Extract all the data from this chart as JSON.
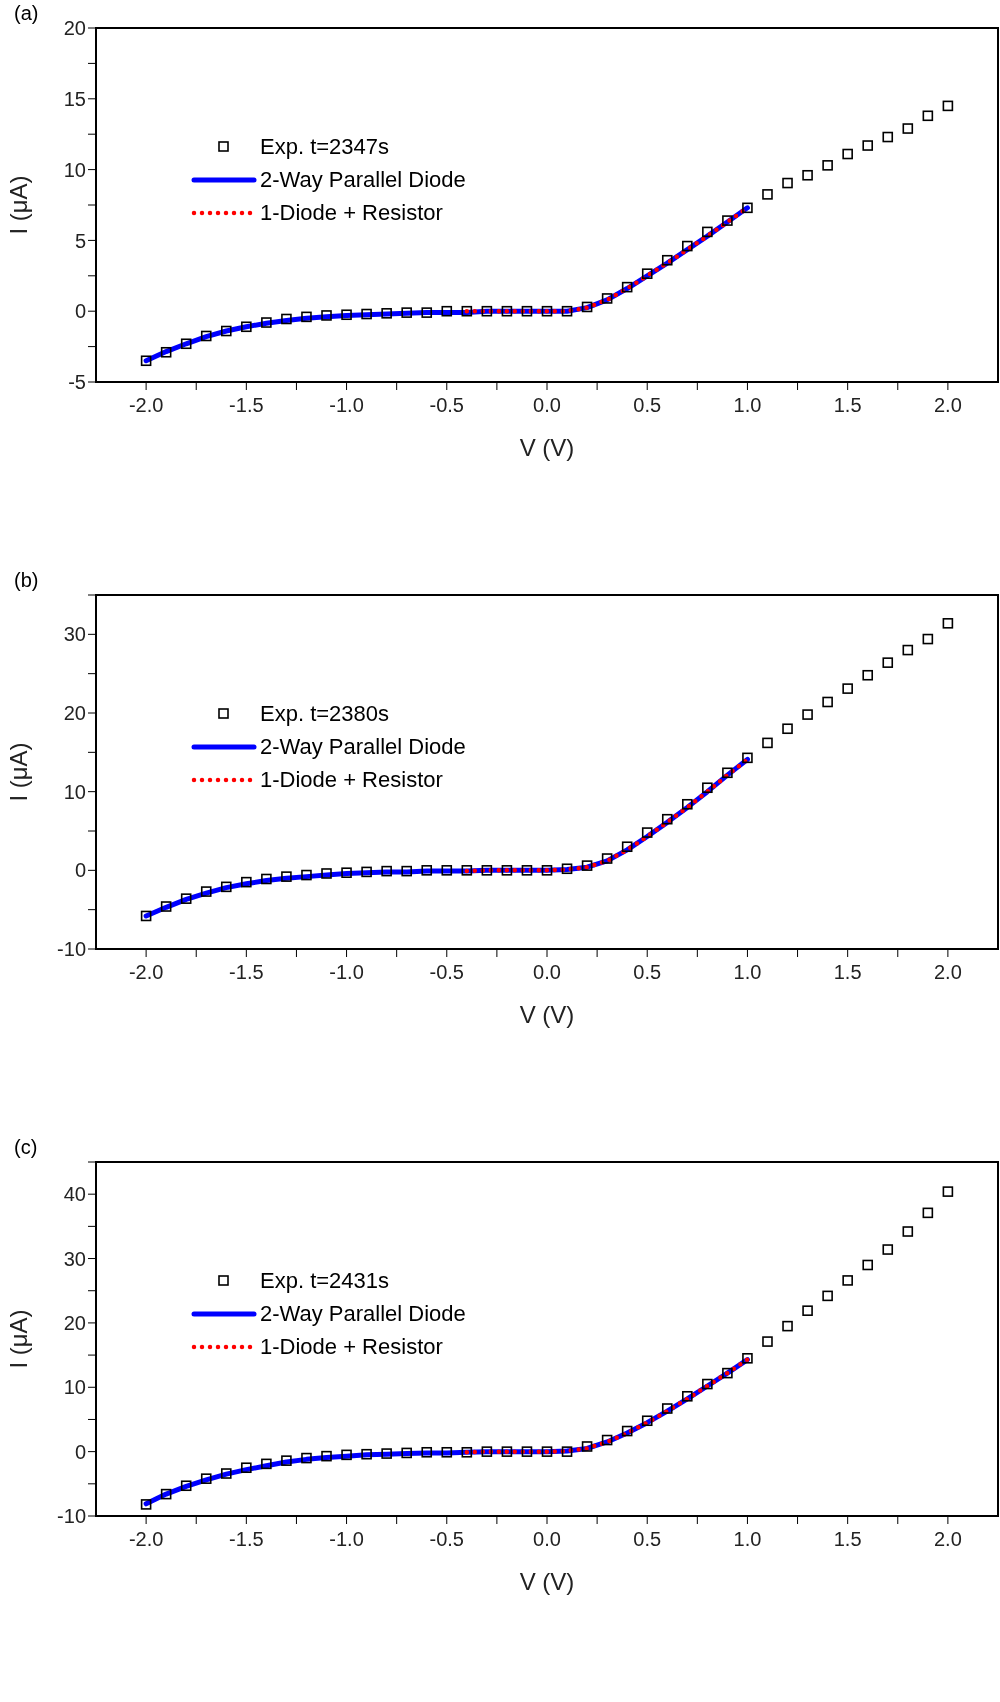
{
  "chart_data": [
    {
      "type": "scatter",
      "title": "(a)",
      "xlabel": "V (V)",
      "ylabel": "I (μA)",
      "xlim": [
        -2.25,
        2.25
      ],
      "xticks": [
        {
          "value": -2,
          "label": "-2.0"
        },
        {
          "value": -1.75,
          "label": null
        },
        {
          "value": -1.5,
          "label": "-1.5"
        },
        {
          "value": -1.25,
          "label": null
        },
        {
          "value": -1,
          "label": "-1.0"
        },
        {
          "value": -0.75,
          "label": null
        },
        {
          "value": -0.5,
          "label": "-0.5"
        },
        {
          "value": -0.25,
          "label": null
        },
        {
          "value": 0,
          "label": "0.0"
        },
        {
          "value": 0.25,
          "label": null
        },
        {
          "value": 0.5,
          "label": "0.5"
        },
        {
          "value": 0.75,
          "label": null
        },
        {
          "value": 1,
          "label": "1.0"
        },
        {
          "value": 1.25,
          "label": null
        },
        {
          "value": 1.5,
          "label": "1.5"
        },
        {
          "value": 1.75,
          "label": null
        },
        {
          "value": 2,
          "label": "2.0"
        }
      ],
      "ylim": [
        -5,
        20
      ],
      "yticks": [
        -5,
        {
          "value": -2.5,
          "label": null
        },
        0,
        {
          "value": 2.5,
          "label": null
        },
        5,
        {
          "value": 7.5,
          "label": null
        },
        10,
        {
          "value": 12.5,
          "label": null
        },
        15,
        {
          "value": 17.5,
          "label": null
        },
        20
      ],
      "legend": "top left",
      "grid": false,
      "series": [
        {
          "name": "Exp. t=2347s",
          "marker": "square",
          "color": "#000000",
          "x": [
            -2.0,
            -1.9,
            -1.8,
            -1.7,
            -1.6,
            -1.5,
            -1.4,
            -1.3,
            -1.2,
            -1.1,
            -1.0,
            -0.9,
            -0.8,
            -0.7,
            -0.6,
            -0.5,
            -0.4,
            -0.3,
            -0.2,
            -0.1,
            0.0,
            0.1,
            0.2,
            0.3,
            0.4,
            0.5,
            0.6,
            0.7,
            0.8,
            0.9,
            1.0,
            1.1,
            1.2,
            1.3,
            1.4,
            1.5,
            1.6,
            1.7,
            1.8,
            1.9,
            2.0
          ],
          "values": [
            -3.5,
            -2.9,
            -2.3,
            -1.75,
            -1.4,
            -1.1,
            -0.8,
            -0.55,
            -0.4,
            -0.3,
            -0.25,
            -0.2,
            -0.15,
            -0.1,
            -0.1,
            0,
            0,
            0,
            0,
            0,
            0,
            0,
            0.3,
            0.9,
            1.7,
            2.65,
            3.6,
            4.6,
            5.6,
            6.4,
            7.3,
            8.25,
            9.05,
            9.6,
            10.3,
            11.1,
            11.7,
            12.3,
            12.9,
            13.8,
            14.5
          ]
        },
        {
          "name": "2-Way Parallel Diode",
          "type": "line",
          "line_style": "solid",
          "marker": "none",
          "color": "#0000ff",
          "x": [
            -2.0,
            -1.9,
            -1.8,
            -1.7,
            -1.6,
            -1.5,
            -1.4,
            -1.3,
            -1.2,
            -1.1,
            -1.0,
            -0.9,
            -0.8,
            -0.7,
            -0.6,
            -0.5,
            -0.4,
            -0.3,
            -0.2,
            -0.1,
            0.0,
            0.1,
            0.2,
            0.3,
            0.4,
            0.5,
            0.6,
            0.7,
            0.8,
            0.9,
            1.0
          ],
          "values": [
            -3.5,
            -2.85,
            -2.3,
            -1.8,
            -1.4,
            -1.1,
            -0.85,
            -0.65,
            -0.5,
            -0.4,
            -0.3,
            -0.25,
            -0.2,
            -0.15,
            -0.1,
            -0.1,
            -0.1,
            0,
            0,
            0,
            0,
            0,
            0.25,
            0.8,
            1.6,
            2.5,
            3.4,
            4.35,
            5.3,
            6.3,
            7.3
          ]
        },
        {
          "name": "1-Diode + Resistor",
          "type": "line",
          "line_style": "dotted",
          "marker": "none",
          "color": "#ff0000",
          "x": [
            -0.4,
            -0.3,
            -0.2,
            -0.1,
            0.0,
            0.1,
            0.2,
            0.3,
            0.4,
            0.5,
            0.6,
            0.7,
            0.8,
            0.9,
            1.0
          ],
          "values": [
            0,
            0,
            0,
            0,
            0,
            0,
            0.25,
            0.8,
            1.6,
            2.5,
            3.4,
            4.35,
            5.3,
            6.3,
            7.3
          ]
        }
      ]
    },
    {
      "type": "scatter",
      "title": "(b)",
      "xlabel": "V (V)",
      "ylabel": "I (μA)",
      "xlim": [
        -2.25,
        2.25
      ],
      "xticks": [
        {
          "value": -2,
          "label": "-2.0"
        },
        {
          "value": -1.75,
          "label": null
        },
        {
          "value": -1.5,
          "label": "-1.5"
        },
        {
          "value": -1.25,
          "label": null
        },
        {
          "value": -1,
          "label": "-1.0"
        },
        {
          "value": -0.75,
          "label": null
        },
        {
          "value": -0.5,
          "label": "-0.5"
        },
        {
          "value": -0.25,
          "label": null
        },
        {
          "value": 0,
          "label": "0.0"
        },
        {
          "value": 0.25,
          "label": null
        },
        {
          "value": 0.5,
          "label": "0.5"
        },
        {
          "value": 0.75,
          "label": null
        },
        {
          "value": 1,
          "label": "1.0"
        },
        {
          "value": 1.25,
          "label": null
        },
        {
          "value": 1.5,
          "label": "1.5"
        },
        {
          "value": 1.75,
          "label": null
        },
        {
          "value": 2,
          "label": "2.0"
        }
      ],
      "ylim": [
        -10,
        35
      ],
      "yticks": [
        -10,
        {
          "value": -5,
          "label": null
        },
        0,
        {
          "value": 5,
          "label": null
        },
        10,
        {
          "value": 15,
          "label": null
        },
        20,
        {
          "value": 25,
          "label": null
        },
        30,
        {
          "value": 35,
          "label": null
        }
      ],
      "legend": "top left",
      "grid": false,
      "series": [
        {
          "name": "Exp. t=2380s",
          "marker": "square",
          "color": "#000000",
          "x": [
            -2.0,
            -1.9,
            -1.8,
            -1.7,
            -1.6,
            -1.5,
            -1.4,
            -1.3,
            -1.2,
            -1.1,
            -1.0,
            -0.9,
            -0.8,
            -0.7,
            -0.6,
            -0.5,
            -0.4,
            -0.3,
            -0.2,
            -0.1,
            0.0,
            0.1,
            0.2,
            0.3,
            0.4,
            0.5,
            0.6,
            0.7,
            0.8,
            0.9,
            1.0,
            1.1,
            1.2,
            1.3,
            1.4,
            1.5,
            1.6,
            1.7,
            1.8,
            1.9,
            2.0
          ],
          "values": [
            -5.8,
            -4.6,
            -3.6,
            -2.7,
            -2.1,
            -1.5,
            -1.1,
            -0.8,
            -0.6,
            -0.4,
            -0.3,
            -0.2,
            -0.1,
            -0.1,
            0,
            0,
            0,
            0,
            0,
            0,
            0,
            0.2,
            0.6,
            1.5,
            3.0,
            4.8,
            6.5,
            8.4,
            10.5,
            12.4,
            14.3,
            16.2,
            18.0,
            19.8,
            21.4,
            23.1,
            24.8,
            26.4,
            28.0,
            29.4,
            31.4
          ]
        },
        {
          "name": "2-Way Parallel Diode",
          "type": "line",
          "line_style": "solid",
          "marker": "none",
          "color": "#0000ff",
          "x": [
            -2.0,
            -1.9,
            -1.8,
            -1.7,
            -1.6,
            -1.5,
            -1.4,
            -1.3,
            -1.2,
            -1.1,
            -1.0,
            -0.9,
            -0.8,
            -0.7,
            -0.6,
            -0.5,
            -0.4,
            -0.3,
            -0.2,
            -0.1,
            0.0,
            0.1,
            0.2,
            0.3,
            0.4,
            0.5,
            0.6,
            0.7,
            0.8,
            0.9,
            1.0
          ],
          "values": [
            -5.8,
            -4.7,
            -3.7,
            -2.9,
            -2.2,
            -1.7,
            -1.3,
            -1.0,
            -0.8,
            -0.6,
            -0.4,
            -0.3,
            -0.2,
            -0.2,
            -0.1,
            -0.1,
            -0.1,
            0,
            0,
            0,
            0,
            0.1,
            0.4,
            1.2,
            2.6,
            4.3,
            6.1,
            8.0,
            10.0,
            12.1,
            14.1
          ]
        },
        {
          "name": "1-Diode + Resistor",
          "type": "line",
          "line_style": "dotted",
          "marker": "none",
          "color": "#ff0000",
          "x": [
            -0.4,
            -0.3,
            -0.2,
            -0.1,
            0.0,
            0.1,
            0.2,
            0.3,
            0.4,
            0.5,
            0.6,
            0.7,
            0.8,
            0.9,
            1.0
          ],
          "values": [
            -0.1,
            0,
            0,
            0,
            0,
            0.1,
            0.4,
            1.2,
            2.6,
            4.3,
            6.1,
            8.0,
            10.0,
            12.1,
            14.1
          ]
        }
      ]
    },
    {
      "type": "scatter",
      "title": "(c)",
      "xlabel": "V (V)",
      "ylabel": "I (μA)",
      "xlim": [
        -2.25,
        2.25
      ],
      "xticks": [
        {
          "value": -2,
          "label": "-2.0"
        },
        {
          "value": -1.75,
          "label": null
        },
        {
          "value": -1.5,
          "label": "-1.5"
        },
        {
          "value": -1.25,
          "label": null
        },
        {
          "value": -1,
          "label": "-1.0"
        },
        {
          "value": -0.75,
          "label": null
        },
        {
          "value": -0.5,
          "label": "-0.5"
        },
        {
          "value": -0.25,
          "label": null
        },
        {
          "value": 0,
          "label": "0.0"
        },
        {
          "value": 0.25,
          "label": null
        },
        {
          "value": 0.5,
          "label": "0.5"
        },
        {
          "value": 0.75,
          "label": null
        },
        {
          "value": 1,
          "label": "1.0"
        },
        {
          "value": 1.25,
          "label": null
        },
        {
          "value": 1.5,
          "label": "1.5"
        },
        {
          "value": 1.75,
          "label": null
        },
        {
          "value": 2,
          "label": "2.0"
        }
      ],
      "ylim": [
        -10,
        45
      ],
      "yticks": [
        -10,
        {
          "value": -5,
          "label": null
        },
        0,
        {
          "value": 5,
          "label": null
        },
        10,
        {
          "value": 15,
          "label": null
        },
        20,
        {
          "value": 25,
          "label": null
        },
        30,
        {
          "value": 35,
          "label": null
        },
        40,
        {
          "value": 45,
          "label": null
        }
      ],
      "legend": "top left",
      "grid": false,
      "series": [
        {
          "name": "Exp. t=2431s",
          "marker": "square",
          "color": "#000000",
          "x": [
            -2.0,
            -1.9,
            -1.8,
            -1.7,
            -1.6,
            -1.5,
            -1.4,
            -1.3,
            -1.2,
            -1.1,
            -1.0,
            -0.9,
            -0.8,
            -0.7,
            -0.6,
            -0.5,
            -0.4,
            -0.3,
            -0.2,
            -0.1,
            0.0,
            0.1,
            0.2,
            0.3,
            0.4,
            0.5,
            0.6,
            0.7,
            0.8,
            0.9,
            1.0,
            1.1,
            1.2,
            1.3,
            1.4,
            1.5,
            1.6,
            1.7,
            1.8,
            1.9,
            2.0
          ],
          "values": [
            -8.2,
            -6.6,
            -5.3,
            -4.2,
            -3.4,
            -2.5,
            -1.9,
            -1.4,
            -1.0,
            -0.7,
            -0.5,
            -0.4,
            -0.3,
            -0.2,
            -0.1,
            -0.1,
            -0.1,
            0,
            0,
            0,
            0,
            0,
            0.8,
            1.8,
            3.2,
            4.8,
            6.7,
            8.6,
            10.5,
            12.2,
            14.5,
            17.1,
            19.5,
            21.9,
            24.2,
            26.6,
            29.0,
            31.4,
            34.2,
            37.1,
            40.4
          ]
        },
        {
          "name": "2-Way Parallel Diode",
          "type": "line",
          "line_style": "solid",
          "marker": "none",
          "color": "#0000ff",
          "x": [
            -2.0,
            -1.9,
            -1.8,
            -1.7,
            -1.6,
            -1.5,
            -1.4,
            -1.3,
            -1.2,
            -1.1,
            -1.0,
            -0.9,
            -0.8,
            -0.7,
            -0.6,
            -0.5,
            -0.4,
            -0.3,
            -0.2,
            -0.1,
            0.0,
            0.1,
            0.2,
            0.3,
            0.4,
            0.5,
            0.6,
            0.7,
            0.8,
            0.9,
            1.0
          ],
          "values": [
            -8.1,
            -6.6,
            -5.4,
            -4.4,
            -3.5,
            -2.8,
            -2.2,
            -1.6,
            -1.2,
            -0.9,
            -0.7,
            -0.5,
            -0.4,
            -0.3,
            -0.2,
            -0.2,
            -0.1,
            0,
            0,
            0,
            0,
            0.1,
            0.5,
            1.5,
            2.9,
            4.5,
            6.3,
            8.2,
            10.2,
            12.2,
            14.3
          ]
        },
        {
          "name": "1-Diode + Resistor",
          "type": "line",
          "line_style": "dotted",
          "marker": "none",
          "color": "#ff0000",
          "x": [
            -0.4,
            -0.3,
            -0.2,
            -0.1,
            0.0,
            0.1,
            0.2,
            0.3,
            0.4,
            0.5,
            0.6,
            0.7,
            0.8,
            0.9,
            1.0
          ],
          "values": [
            -0.1,
            0,
            0,
            0,
            0,
            0.1,
            0.5,
            1.5,
            2.9,
            4.5,
            6.3,
            8.2,
            10.2,
            12.2,
            14.3
          ]
        }
      ]
    }
  ]
}
